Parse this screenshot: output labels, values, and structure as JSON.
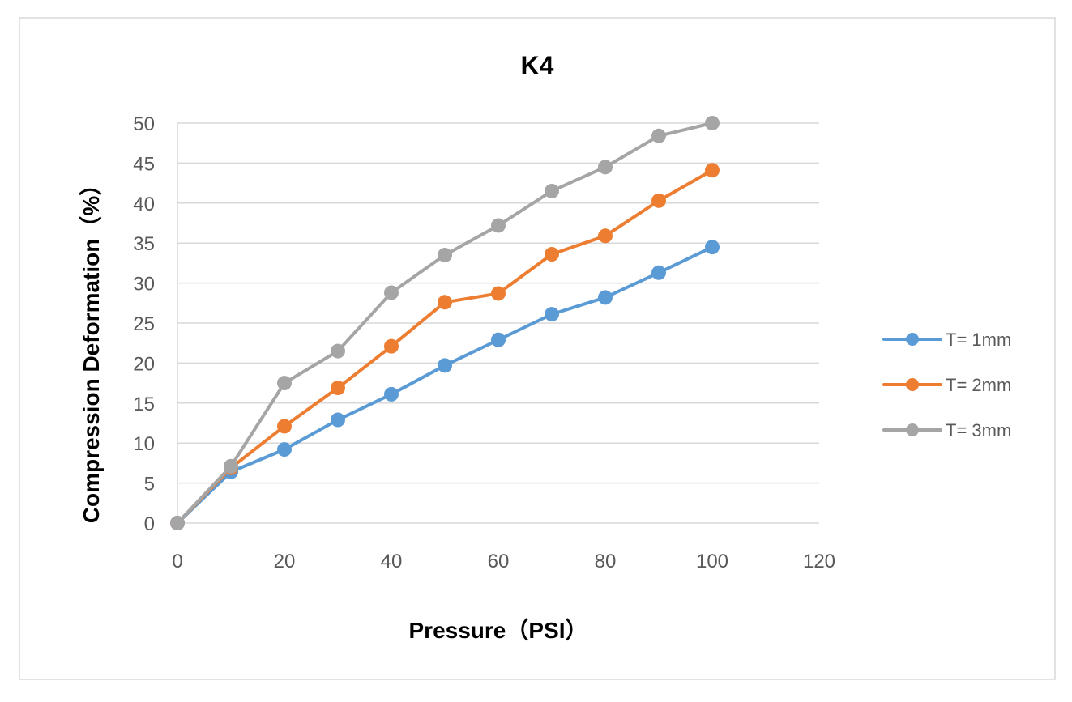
{
  "chart_data": {
    "type": "line",
    "title": "K4",
    "xlabel": "Pressure（PSI）",
    "ylabel": "Compression Deformation（%）",
    "xlim": [
      0,
      120
    ],
    "ylim": [
      0,
      50
    ],
    "xticks": [
      0,
      20,
      40,
      60,
      80,
      100,
      120
    ],
    "yticks": [
      0,
      5,
      10,
      15,
      20,
      25,
      30,
      35,
      40,
      45,
      50
    ],
    "grid": "horizontal",
    "legend_position": "right",
    "x": [
      0,
      10,
      20,
      30,
      40,
      50,
      60,
      70,
      80,
      90,
      100
    ],
    "series": [
      {
        "name": "T= 1mm",
        "color": "#5B9BD5",
        "values": [
          0,
          6.4,
          9.2,
          12.9,
          16.1,
          19.7,
          22.9,
          26.1,
          28.2,
          31.3,
          34.5
        ]
      },
      {
        "name": "T= 2mm",
        "color": "#ED7D31",
        "values": [
          0,
          6.9,
          12.1,
          16.9,
          22.1,
          27.6,
          28.7,
          33.6,
          35.9,
          40.3,
          44.1
        ]
      },
      {
        "name": "T= 3mm",
        "color": "#A5A5A5",
        "values": [
          0,
          7.1,
          17.5,
          21.5,
          28.8,
          33.5,
          37.2,
          41.5,
          44.5,
          48.4,
          50.0
        ]
      }
    ]
  }
}
